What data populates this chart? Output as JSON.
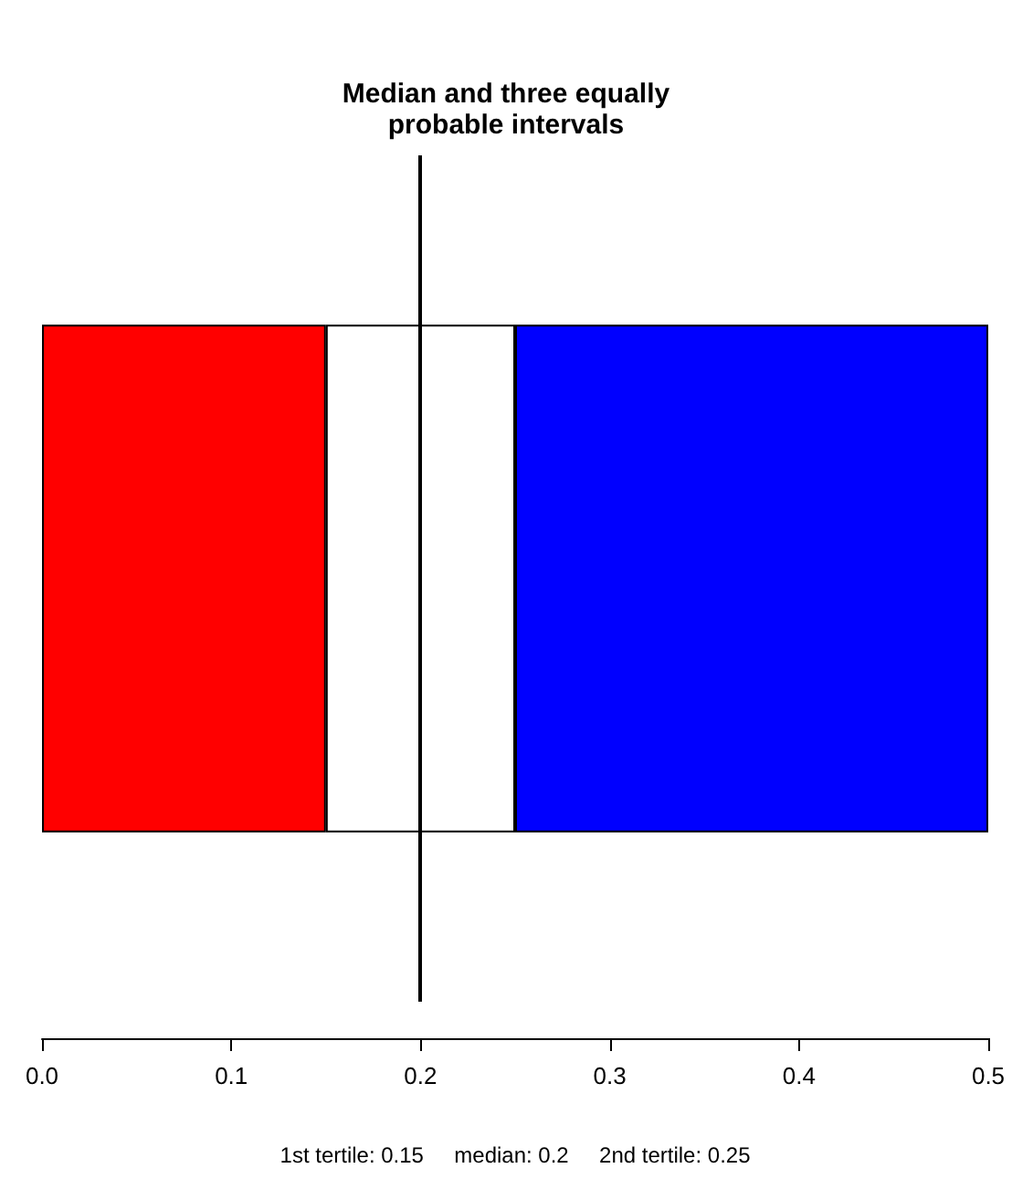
{
  "chart_data": {
    "type": "bar",
    "orientation": "horizontal",
    "stacked": true,
    "title": "Median and three equally\nprobable intervals",
    "xlabel": "1st tertile: 0.15     median: 0.2     2nd tertile: 0.25",
    "categories": [
      null
    ],
    "series": [
      {
        "color": "#ff0000",
        "values": [
          0.15
        ]
      },
      {
        "color": "#ffffff",
        "values": [
          0.1
        ]
      },
      {
        "color": "#0000ff",
        "values": [
          0.25
        ]
      }
    ],
    "xlim": [
      0,
      0.5
    ],
    "xticks": [
      {
        "value": 0,
        "label": "0.0"
      },
      {
        "value": 0.1,
        "label": "0.1"
      },
      {
        "value": 0.2,
        "label": "0.2"
      },
      {
        "value": 0.3,
        "label": "0.3"
      },
      {
        "value": 0.4,
        "label": "0.4"
      },
      {
        "value": 0.5,
        "label": "0.5"
      }
    ],
    "ref_lines": [
      {
        "axis": "x",
        "value": 0.2,
        "color": "#000000"
      }
    ],
    "tick_labels": "x",
    "grid": false
  }
}
